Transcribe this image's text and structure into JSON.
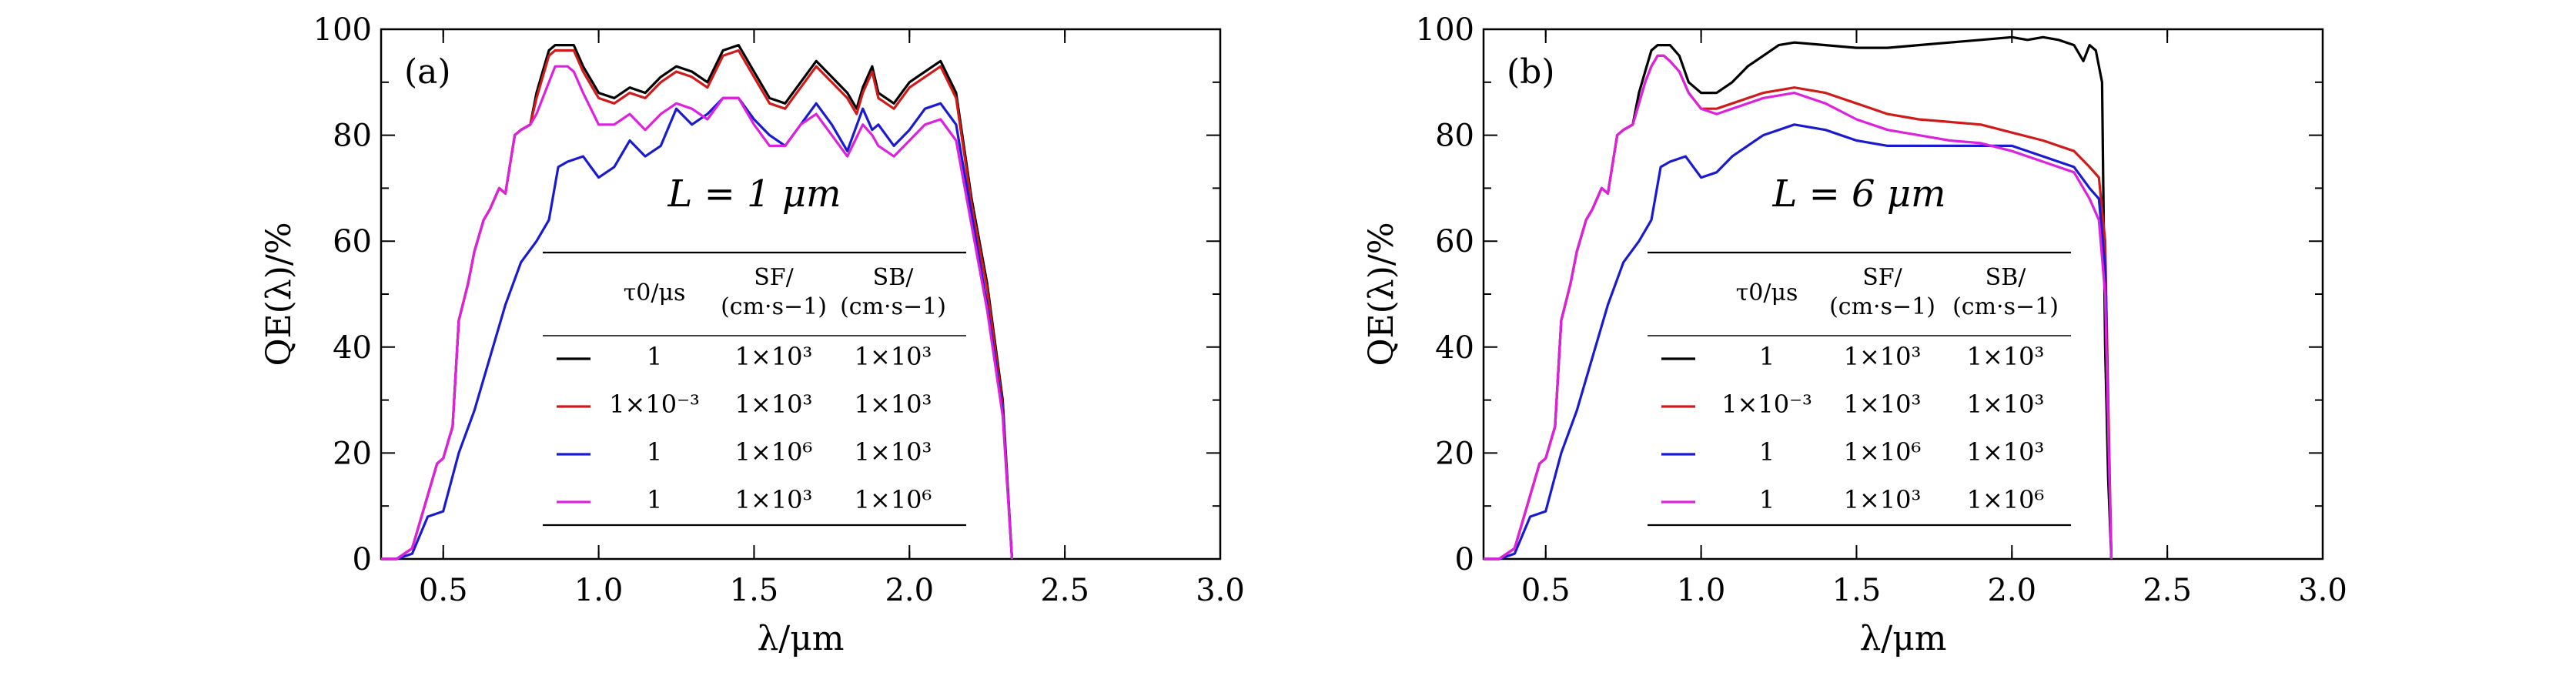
{
  "figure": {
    "panels": [
      "(a)",
      "(b)"
    ]
  },
  "chart_data": [
    {
      "type": "line",
      "panel_label": "(a)",
      "annotation": "L = 1 μm",
      "xlabel": "λ/μm",
      "ylabel": "QE(λ)/%",
      "xlim": [
        0.3,
        3.0
      ],
      "ylim": [
        0,
        100
      ],
      "xticks": [
        "0.5",
        "1.0",
        "1.5",
        "2.0",
        "2.5",
        "3.0"
      ],
      "yticks": [
        "0",
        "20",
        "40",
        "60",
        "80",
        "100"
      ],
      "table": {
        "headers": [
          "τ0/μs",
          "SF/(cm·s−1)",
          "SB/(cm·s−1)"
        ],
        "rows": [
          [
            "1",
            "1×10³",
            "1×10³"
          ],
          [
            "1×10⁻³",
            "1×10³",
            "1×10³"
          ],
          [
            "1",
            "1×10⁶",
            "1×10³"
          ],
          [
            "1",
            "1×10³",
            "1×10⁶"
          ]
        ]
      },
      "series": [
        {
          "name": "τ0=1, SF=1e3, SB=1e3",
          "color": "#000000",
          "x": [
            0.3,
            0.35,
            0.4,
            0.45,
            0.48,
            0.5,
            0.53,
            0.55,
            0.58,
            0.6,
            0.63,
            0.65,
            0.68,
            0.7,
            0.73,
            0.75,
            0.78,
            0.8,
            0.82,
            0.84,
            0.86,
            0.88,
            0.9,
            0.92,
            0.95,
            1.0,
            1.05,
            1.1,
            1.15,
            1.2,
            1.25,
            1.3,
            1.35,
            1.4,
            1.45,
            1.5,
            1.55,
            1.6,
            1.65,
            1.7,
            1.75,
            1.8,
            1.83,
            1.85,
            1.88,
            1.9,
            1.95,
            2.0,
            2.05,
            2.1,
            2.15,
            2.2,
            2.25,
            2.3,
            2.33
          ],
          "y": [
            0,
            0,
            2,
            12,
            18,
            19,
            25,
            45,
            52,
            58,
            64,
            66,
            70,
            69,
            80,
            81,
            82,
            88,
            92,
            96,
            97,
            97,
            97,
            97,
            93,
            88,
            87,
            89,
            88,
            91,
            93,
            92,
            90,
            96,
            97,
            92,
            87,
            86,
            90,
            94,
            91,
            88,
            85,
            89,
            93,
            88,
            86,
            90,
            92,
            94,
            88,
            68,
            52,
            30,
            0
          ]
        },
        {
          "name": "τ0=1e-3, SF=1e3, SB=1e3",
          "color": "#d11a1a",
          "x": [
            0.3,
            0.35,
            0.4,
            0.45,
            0.48,
            0.5,
            0.53,
            0.55,
            0.58,
            0.6,
            0.63,
            0.65,
            0.68,
            0.7,
            0.73,
            0.75,
            0.78,
            0.8,
            0.82,
            0.84,
            0.86,
            0.88,
            0.9,
            0.92,
            0.95,
            1.0,
            1.05,
            1.1,
            1.15,
            1.2,
            1.25,
            1.3,
            1.35,
            1.4,
            1.45,
            1.5,
            1.55,
            1.6,
            1.65,
            1.7,
            1.75,
            1.8,
            1.83,
            1.85,
            1.88,
            1.9,
            1.95,
            2.0,
            2.05,
            2.1,
            2.15,
            2.2,
            2.25,
            2.3,
            2.33
          ],
          "y": [
            0,
            0,
            2,
            12,
            18,
            19,
            25,
            45,
            52,
            58,
            64,
            66,
            70,
            69,
            80,
            81,
            82,
            87,
            91,
            95,
            96,
            96,
            96,
            96,
            92,
            87,
            86,
            88,
            87,
            90,
            92,
            91,
            89,
            95,
            96,
            91,
            86,
            85,
            89,
            93,
            90,
            87,
            84,
            88,
            92,
            87,
            85,
            89,
            91,
            93,
            87,
            67,
            51,
            29,
            0
          ]
        },
        {
          "name": "τ0=1, SF=1e6, SB=1e3",
          "color": "#1a1ad1",
          "x": [
            0.3,
            0.35,
            0.4,
            0.45,
            0.5,
            0.55,
            0.6,
            0.65,
            0.7,
            0.75,
            0.8,
            0.84,
            0.87,
            0.9,
            0.95,
            1.0,
            1.05,
            1.1,
            1.15,
            1.2,
            1.25,
            1.3,
            1.35,
            1.4,
            1.45,
            1.5,
            1.55,
            1.6,
            1.65,
            1.7,
            1.75,
            1.8,
            1.85,
            1.88,
            1.9,
            1.95,
            2.0,
            2.05,
            2.1,
            2.15,
            2.2,
            2.25,
            2.3,
            2.33
          ],
          "y": [
            0,
            0,
            1,
            8,
            9,
            20,
            28,
            38,
            48,
            56,
            60,
            64,
            74,
            75,
            76,
            72,
            74,
            79,
            76,
            78,
            85,
            82,
            84,
            87,
            87,
            83,
            80,
            78,
            82,
            86,
            82,
            77,
            85,
            81,
            82,
            78,
            81,
            85,
            86,
            82,
            65,
            48,
            28,
            0
          ]
        },
        {
          "name": "τ0=1, SF=1e3, SB=1e6",
          "color": "#dd22dd",
          "x": [
            0.3,
            0.35,
            0.4,
            0.45,
            0.48,
            0.5,
            0.53,
            0.55,
            0.58,
            0.6,
            0.63,
            0.65,
            0.68,
            0.7,
            0.73,
            0.75,
            0.78,
            0.8,
            0.82,
            0.84,
            0.86,
            0.88,
            0.9,
            0.92,
            0.95,
            1.0,
            1.05,
            1.1,
            1.15,
            1.2,
            1.25,
            1.3,
            1.35,
            1.4,
            1.45,
            1.5,
            1.55,
            1.6,
            1.65,
            1.7,
            1.75,
            1.8,
            1.85,
            1.88,
            1.9,
            1.95,
            2.0,
            2.05,
            2.1,
            2.15,
            2.2,
            2.25,
            2.3,
            2.33
          ],
          "y": [
            0,
            0,
            2,
            12,
            18,
            19,
            25,
            45,
            52,
            58,
            64,
            66,
            70,
            69,
            80,
            81,
            82,
            84,
            87,
            90,
            93,
            93,
            93,
            92,
            88,
            82,
            82,
            84,
            81,
            84,
            86,
            85,
            83,
            87,
            87,
            82,
            78,
            78,
            82,
            84,
            80,
            76,
            82,
            80,
            78,
            76,
            79,
            82,
            83,
            79,
            63,
            47,
            27,
            0
          ]
        }
      ]
    },
    {
      "type": "line",
      "panel_label": "(b)",
      "annotation": "L = 6 μm",
      "xlabel": "λ/μm",
      "ylabel": "QE(λ)/%",
      "xlim": [
        0.3,
        3.0
      ],
      "ylim": [
        0,
        100
      ],
      "xticks": [
        "0.5",
        "1.0",
        "1.5",
        "2.0",
        "2.5",
        "3.0"
      ],
      "yticks": [
        "0",
        "20",
        "40",
        "60",
        "80",
        "100"
      ],
      "table": {
        "headers": [
          "τ0/μs",
          "SF/(cm·s−1)",
          "SB/(cm·s−1)"
        ],
        "rows": [
          [
            "1",
            "1×10³",
            "1×10³"
          ],
          [
            "1×10⁻³",
            "1×10³",
            "1×10³"
          ],
          [
            "1",
            "1×10⁶",
            "1×10³"
          ],
          [
            "1",
            "1×10³",
            "1×10⁶"
          ]
        ]
      },
      "series": [
        {
          "name": "τ0=1, SF=1e3, SB=1e3",
          "color": "#000000",
          "x": [
            0.3,
            0.35,
            0.4,
            0.45,
            0.48,
            0.5,
            0.53,
            0.55,
            0.58,
            0.6,
            0.63,
            0.65,
            0.68,
            0.7,
            0.73,
            0.75,
            0.78,
            0.8,
            0.82,
            0.84,
            0.86,
            0.88,
            0.9,
            0.93,
            0.96,
            1.0,
            1.05,
            1.1,
            1.15,
            1.2,
            1.25,
            1.3,
            1.4,
            1.5,
            1.6,
            1.7,
            1.8,
            1.9,
            2.0,
            2.05,
            2.1,
            2.15,
            2.2,
            2.23,
            2.25,
            2.27,
            2.29,
            2.3,
            2.31,
            2.32
          ],
          "y": [
            0,
            0,
            2,
            12,
            18,
            19,
            25,
            45,
            52,
            58,
            64,
            66,
            70,
            69,
            80,
            81,
            82,
            88,
            92,
            96,
            97,
            97,
            97,
            95,
            90,
            88,
            88,
            90,
            93,
            95,
            97,
            97.5,
            97,
            96.5,
            96.5,
            97,
            97.5,
            98,
            98.5,
            98,
            98.5,
            98,
            97,
            94,
            97,
            96,
            90,
            40,
            15,
            0
          ]
        },
        {
          "name": "τ0=1e-3, SF=1e3, SB=1e3",
          "color": "#d11a1a",
          "x": [
            0.3,
            0.35,
            0.4,
            0.45,
            0.48,
            0.5,
            0.53,
            0.55,
            0.58,
            0.6,
            0.63,
            0.65,
            0.68,
            0.7,
            0.73,
            0.75,
            0.78,
            0.8,
            0.82,
            0.84,
            0.86,
            0.88,
            0.9,
            0.93,
            0.96,
            1.0,
            1.05,
            1.1,
            1.2,
            1.3,
            1.4,
            1.5,
            1.6,
            1.7,
            1.8,
            1.9,
            2.0,
            2.1,
            2.2,
            2.25,
            2.28,
            2.3,
            2.31,
            2.32
          ],
          "y": [
            0,
            0,
            2,
            12,
            18,
            19,
            25,
            45,
            52,
            58,
            64,
            66,
            70,
            69,
            80,
            81,
            82,
            86,
            90,
            93,
            95,
            95,
            94,
            92,
            88,
            85,
            85,
            86,
            88,
            89,
            88,
            86,
            84,
            83,
            82.5,
            82,
            80.5,
            79,
            77,
            74,
            72,
            60,
            30,
            0
          ]
        },
        {
          "name": "τ0=1, SF=1e6, SB=1e3",
          "color": "#1a1ad1",
          "x": [
            0.3,
            0.35,
            0.4,
            0.45,
            0.5,
            0.55,
            0.6,
            0.65,
            0.7,
            0.75,
            0.8,
            0.84,
            0.87,
            0.9,
            0.95,
            1.0,
            1.05,
            1.1,
            1.2,
            1.3,
            1.4,
            1.5,
            1.6,
            1.7,
            1.8,
            1.9,
            2.0,
            2.1,
            2.2,
            2.25,
            2.28,
            2.3,
            2.31,
            2.32
          ],
          "y": [
            0,
            0,
            1,
            8,
            9,
            20,
            28,
            38,
            48,
            56,
            60,
            64,
            74,
            75,
            76,
            72,
            73,
            76,
            80,
            82,
            81,
            79,
            78,
            78,
            78,
            78,
            78,
            76,
            74,
            70,
            68,
            55,
            25,
            0
          ]
        },
        {
          "name": "τ0=1, SF=1e3, SB=1e6",
          "color": "#dd22dd",
          "x": [
            0.3,
            0.35,
            0.4,
            0.45,
            0.48,
            0.5,
            0.53,
            0.55,
            0.58,
            0.6,
            0.63,
            0.65,
            0.68,
            0.7,
            0.73,
            0.75,
            0.78,
            0.8,
            0.82,
            0.84,
            0.86,
            0.88,
            0.9,
            0.93,
            0.96,
            1.0,
            1.05,
            1.1,
            1.2,
            1.3,
            1.4,
            1.5,
            1.6,
            1.7,
            1.8,
            1.9,
            2.0,
            2.1,
            2.2,
            2.25,
            2.28,
            2.3,
            2.31,
            2.32
          ],
          "y": [
            0,
            0,
            2,
            12,
            18,
            19,
            25,
            45,
            52,
            58,
            64,
            66,
            70,
            69,
            80,
            81,
            82,
            86,
            90,
            93,
            95,
            95,
            94,
            92,
            88,
            85,
            84,
            85,
            87,
            88,
            86,
            83,
            81,
            80,
            79,
            78.5,
            77,
            75,
            73,
            68,
            64,
            50,
            25,
            0
          ]
        }
      ]
    }
  ]
}
